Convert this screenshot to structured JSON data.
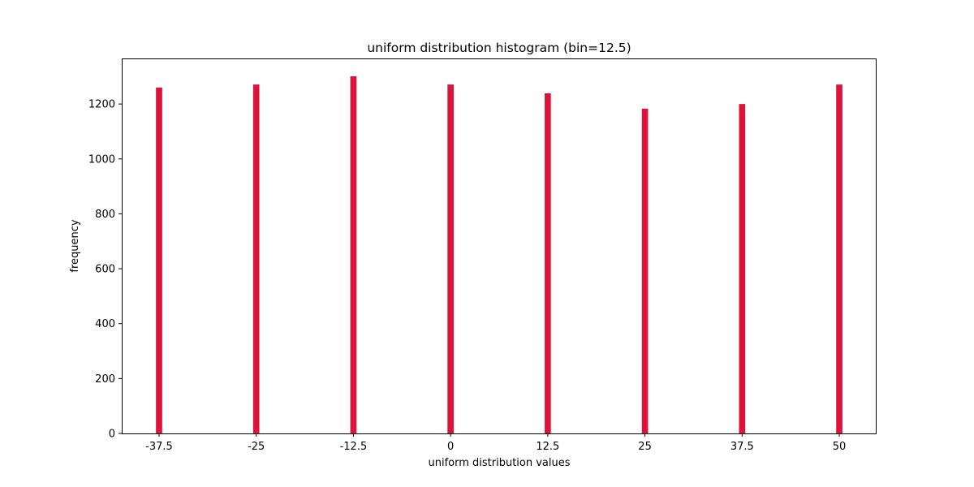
{
  "chart_data": {
    "type": "bar",
    "title": "uniform distribution histogram (bin=12.5)",
    "xlabel": "uniform distribution values",
    "ylabel": "frequency",
    "categories": [
      "-37.5",
      "-25",
      "-12.5",
      "0",
      "12.5",
      "25",
      "37.5",
      "50"
    ],
    "x": [
      -37.5,
      -25,
      -12.5,
      0,
      12.5,
      25,
      37.5,
      50
    ],
    "values": [
      1260,
      1271,
      1301,
      1271,
      1239,
      1183,
      1200,
      1271
    ],
    "yticks": [
      0,
      200,
      400,
      600,
      800,
      1000,
      1200
    ],
    "xlim": [
      -42.3,
      54.8
    ],
    "ylim": [
      0,
      1366
    ],
    "bar_width": 0.8,
    "bar_color": "#dc143c",
    "grid": false,
    "legend": "none"
  }
}
